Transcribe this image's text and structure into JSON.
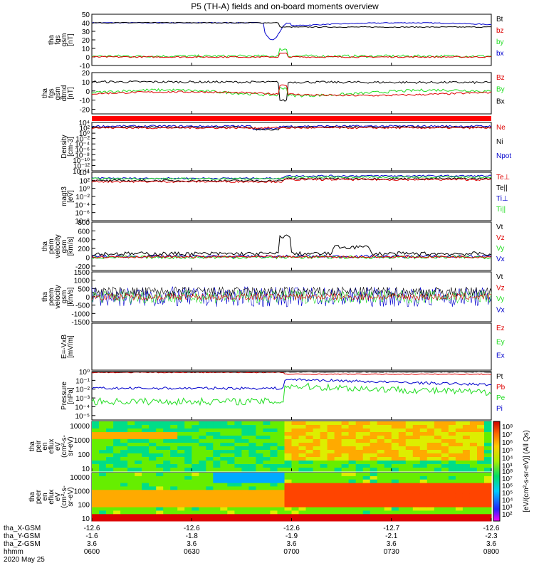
{
  "chart_data": {
    "type": "line",
    "title": "P5 (TH-A) fields and on-board moments overview",
    "date": "2020 May 25",
    "time_range": [
      "06:00",
      "08:00"
    ],
    "colors": {
      "black": "#000000",
      "red": "#dd0000",
      "green": "#22dd22",
      "blue": "#0000cc"
    },
    "panels": [
      {
        "ylabel": [
          "tha",
          "fgs",
          "gsm",
          "[nT]"
        ],
        "ylim": [
          -10,
          50
        ],
        "scale": "linear",
        "yticks": [
          [
            "50",
            "50"
          ],
          [
            "40",
            "40"
          ],
          [
            "30",
            "30"
          ],
          [
            "20",
            "20"
          ],
          [
            "10",
            "10"
          ],
          [
            "0",
            "0"
          ],
          [
            "-10",
            "-10"
          ]
        ],
        "legend": [
          [
            "Bt",
            "black"
          ],
          [
            "bz",
            "red"
          ],
          [
            "by",
            "green"
          ],
          [
            "bx",
            "blue"
          ]
        ]
      },
      {
        "ylabel": [
          "tha",
          "fgs",
          "gsm",
          "dtrnd",
          "[nT]"
        ],
        "ylim": [
          -25,
          20
        ],
        "scale": "linear",
        "yticks": [
          [
            "20",
            "20"
          ],
          [
            "10",
            "10"
          ],
          [
            "0",
            "0"
          ],
          [
            "-10",
            "-10"
          ],
          [
            "-20",
            "-20"
          ]
        ],
        "legend": [
          [
            "Bz",
            "red"
          ],
          [
            "By",
            "green"
          ],
          [
            "Bx",
            "black"
          ]
        ]
      },
      {
        "ylabel": [],
        "ylim": [
          0,
          1
        ],
        "scale": "linear",
        "yticks": [],
        "legend": []
      },
      {
        "ylabel": [
          "Density",
          "[cm-3]"
        ],
        "ylim": [
          -14,
          4
        ],
        "scale": "log",
        "yticks": [
          [
            "4",
            "10⁴"
          ],
          [
            "2",
            "10²"
          ],
          [
            "0",
            "10⁰"
          ],
          [
            "-2",
            "10⁻²"
          ],
          [
            "-4",
            "10⁻⁴"
          ],
          [
            "-6",
            "10⁻⁶"
          ],
          [
            "-8",
            "10⁻⁸"
          ],
          [
            "-10",
            "10⁻¹⁰"
          ],
          [
            "-12",
            "10⁻¹²"
          ],
          [
            "-14",
            "10⁻¹⁴"
          ]
        ],
        "legend": [
          [
            "Ne",
            "red"
          ],
          [
            "Ni",
            "black"
          ],
          [
            "Npot",
            "blue"
          ]
        ]
      },
      {
        "ylabel": [
          "magt3",
          "[eV]"
        ],
        "ylim": [
          -8,
          4
        ],
        "scale": "log",
        "yticks": [
          [
            "4",
            "10⁴"
          ],
          [
            "2",
            "10²"
          ],
          [
            "0",
            "10⁰"
          ],
          [
            "-2",
            "10⁻²"
          ],
          [
            "-4",
            "10⁻⁴"
          ],
          [
            "-6",
            "10⁻⁶"
          ],
          [
            "-8",
            "10⁻⁸"
          ]
        ],
        "legend": [
          [
            "Te⊥",
            "red"
          ],
          [
            "Te||",
            "black"
          ],
          [
            "Ti⊥",
            "blue"
          ],
          [
            "Ti||",
            "green"
          ]
        ]
      },
      {
        "ylabel": [
          "tha",
          "peim",
          "velocity",
          "gsm",
          "[km/s]"
        ],
        "ylim": [
          -300,
          800
        ],
        "scale": "linear",
        "yticks": [
          [
            "800",
            "800"
          ],
          [
            "600",
            "600"
          ],
          [
            "400",
            "400"
          ],
          [
            "200",
            "200"
          ],
          [
            "0",
            "0"
          ],
          [
            "-200",
            "-200"
          ]
        ],
        "legend": [
          [
            "Vt",
            "black"
          ],
          [
            "Vz",
            "red"
          ],
          [
            "Vy",
            "green"
          ],
          [
            "Vx",
            "blue"
          ]
        ]
      },
      {
        "ylabel": [
          "tha",
          "peem",
          "velocity",
          "gsm",
          "[km/s]"
        ],
        "ylim": [
          -1500,
          1500
        ],
        "scale": "linear",
        "yticks": [
          [
            "1500",
            "1500"
          ],
          [
            "1000",
            "1000"
          ],
          [
            "500",
            "500"
          ],
          [
            "0",
            "0"
          ],
          [
            "-500",
            "-500"
          ],
          [
            "-1000",
            "-1000"
          ],
          [
            "-1500",
            "-1500"
          ]
        ],
        "legend": [
          [
            "Vt",
            "black"
          ],
          [
            "Vz",
            "red"
          ],
          [
            "Vy",
            "green"
          ],
          [
            "Vx",
            "blue"
          ]
        ]
      },
      {
        "ylabel": [
          "E=-VxB",
          "[mV/m]"
        ],
        "ylim": [
          -1,
          1
        ],
        "scale": "linear",
        "yticks": [],
        "legend": [
          [
            "Ez",
            "red"
          ],
          [
            "Ey",
            "green"
          ],
          [
            "Ex",
            "blue"
          ]
        ]
      },
      {
        "ylabel": [
          "Pressure",
          "[nPa]"
        ],
        "ylim": [
          -5.5,
          0
        ],
        "scale": "log",
        "yticks": [
          [
            "0",
            "10⁰"
          ],
          [
            "-1",
            "10⁻¹"
          ],
          [
            "-2",
            "10⁻²"
          ],
          [
            "-3",
            "10⁻³"
          ],
          [
            "-4",
            "10⁻⁴"
          ],
          [
            "-5",
            "10⁻⁵"
          ]
        ],
        "legend": [
          [
            "Pt",
            "black"
          ],
          [
            "Pb",
            "red"
          ],
          [
            "Pe",
            "green"
          ],
          [
            "Pi",
            "blue"
          ]
        ]
      },
      {
        "ylabel": [
          "tha",
          "peir",
          "en",
          "eflux",
          "eV",
          "(cm²-s-",
          "sr-eV)"
        ],
        "ylim": [
          0.8,
          4.3
        ],
        "scale": "log",
        "yticks": [
          [
            "4",
            "10000"
          ],
          [
            "3",
            "1000"
          ],
          [
            "2",
            "100"
          ],
          [
            "1",
            "10"
          ]
        ],
        "legend": []
      },
      {
        "ylabel": [
          "tha",
          "peer",
          "en",
          "eflux",
          "eV",
          "(cm²-s-",
          "sr-eV)"
        ],
        "ylim": [
          0.8,
          4.3
        ],
        "scale": "log",
        "yticks": [
          [
            "4",
            "10000"
          ],
          [
            "3",
            "1000"
          ],
          [
            "2",
            "100"
          ],
          [
            "1",
            "10"
          ]
        ],
        "legend": []
      }
    ],
    "colorbar": {
      "label": "[eV/(cm²-s-sr-eV)] (All Qs)",
      "ticks_top": [
        "10⁸",
        "10⁷",
        "10⁶",
        "10⁵",
        "10⁴",
        "10³"
      ],
      "ticks_bottom": [
        "10⁸",
        "10⁷",
        "10⁶",
        "10⁵",
        "10⁴",
        "10³",
        "10²"
      ]
    },
    "xaxis": {
      "tick_times": [
        "0600",
        "0630",
        "0700",
        "0730",
        "0800"
      ],
      "rows": [
        {
          "label": "tha_X-GSM",
          "values": [
            "-12.6",
            "-12.6",
            "-12.6",
            "-12.7",
            "-12.6"
          ]
        },
        {
          "label": "tha_Y-GSM",
          "values": [
            "-1.6",
            "-1.8",
            "-1.9",
            "-2.1",
            "-2.3"
          ]
        },
        {
          "label": "tha_Z-GSM",
          "values": [
            "3.6",
            "3.6",
            "3.6",
            "3.6",
            "3.6"
          ]
        },
        {
          "label": "hhmm",
          "values": [
            "0600",
            "0630",
            "0700",
            "0730",
            "0800"
          ]
        }
      ]
    }
  }
}
